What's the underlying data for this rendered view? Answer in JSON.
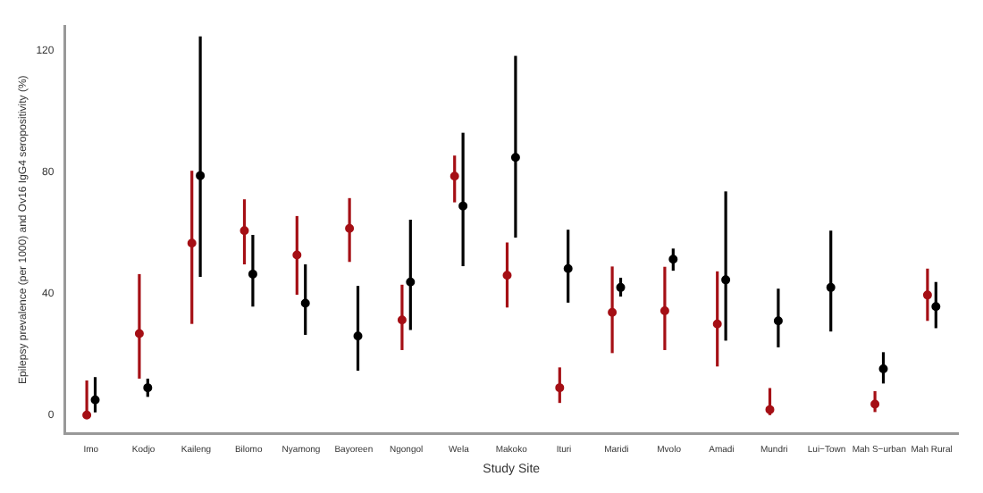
{
  "chart_data": {
    "type": "scatter",
    "xlabel": "Study Site",
    "ylabel": "Epilepsy prevalence (per 1000) and Ov16 IgG4 seropositivity (%)",
    "categories": [
      "Imo",
      "Kodjo",
      "Kaileng",
      "Bilomo",
      "Nyamong",
      "Bayoreen",
      "Ngongol",
      "Wela",
      "Makoko",
      "Ituri",
      "Maridi",
      "Mvolo",
      "Amadi",
      "Mundri",
      "Lui−Town",
      "Mah S−urban",
      "Mah Rural"
    ],
    "series": [
      {
        "color": "#a50f15",
        "values": [
          0,
          26.8,
          56.6,
          60.7,
          52.7,
          61.4,
          31.3,
          78.6,
          46,
          9,
          33.8,
          34.3,
          30,
          1.8,
          null,
          3.6,
          39.5
        ],
        "errors": [
          [
            0,
            11.4
          ],
          [
            12,
            46.4
          ],
          [
            30,
            80.4
          ],
          [
            49.6,
            71
          ],
          [
            39.6,
            65.5
          ],
          [
            50.4,
            71.4
          ],
          [
            21.4,
            42.9
          ],
          [
            70,
            85.4
          ],
          [
            35.4,
            56.8
          ],
          [
            4,
            15.7
          ],
          [
            20.4,
            48.9
          ],
          [
            21.4,
            48.8
          ],
          [
            16,
            47.3
          ],
          [
            0,
            8.9
          ],
          null,
          [
            1,
            7.9
          ],
          [
            31,
            48.2
          ]
        ]
      },
      {
        "color": "#000000",
        "values": [
          5,
          9,
          78.8,
          46.4,
          36.8,
          26,
          43.8,
          68.8,
          84.8,
          48.2,
          42,
          51.3,
          44.5,
          31,
          42,
          15.2,
          35.7
        ],
        "errors": [
          [
            0.9,
            12.5
          ],
          [
            6,
            12
          ],
          [
            45.5,
            124.6
          ],
          [
            35.7,
            59.3
          ],
          [
            26.4,
            49.6
          ],
          [
            14.6,
            42.5
          ],
          [
            28,
            64.3
          ],
          [
            49,
            92.9
          ],
          [
            58.4,
            118.2
          ],
          [
            37,
            61
          ],
          [
            39,
            45.2
          ],
          [
            47.5,
            54.8
          ],
          [
            24.5,
            73.6
          ],
          [
            22.3,
            41.6
          ],
          [
            27.5,
            60.7
          ],
          [
            10.4,
            20.7
          ],
          [
            28.6,
            43.8
          ]
        ]
      }
    ],
    "ylim": [
      -6,
      128
    ],
    "yticks": [
      0,
      40,
      80,
      120
    ],
    "grid": false,
    "legend": false,
    "marker": "circle"
  }
}
